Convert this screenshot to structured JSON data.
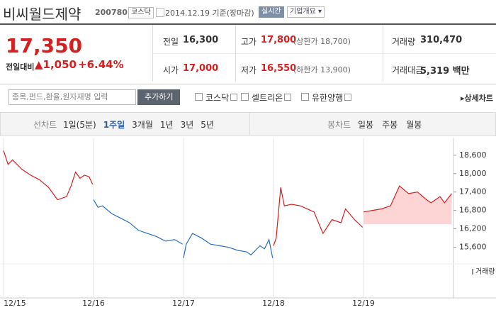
{
  "header": {
    "name": "비씨월드제약",
    "code": "200780",
    "market": "코스닥",
    "date": "2014.12.19 기준(장마감)",
    "realtime": "실시간",
    "company_info": "기업개요"
  },
  "quote": {
    "price": "17,350",
    "change_label": "전일대비",
    "change": "1,050",
    "change_pct": "+6.44%"
  },
  "stats": [
    {
      "label": "전일",
      "value": "16,300"
    },
    {
      "label": "고가",
      "value": "17,800",
      "note": "(상한가 18,700)"
    },
    {
      "label": "거래량",
      "value": "310,470"
    },
    {
      "label": "시가",
      "value": "17,000"
    },
    {
      "label": "저가",
      "value": "16,550",
      "note": "(하한가 13,900)"
    },
    {
      "label": "거래대금",
      "value": "5,319 백만"
    }
  ],
  "search": {
    "placeholder": "종목,펀드,환율,원자재명 입력",
    "button": "추가하기",
    "compare": [
      "코스닥",
      "셀트리온",
      "유한양행"
    ],
    "detail": "상세차트"
  },
  "tabs": {
    "line_label": "선차트",
    "periods": [
      "1일(5분)",
      "1주일",
      "3개월",
      "1년",
      "3년",
      "5년"
    ],
    "candle_label": "봉차트",
    "candles": [
      "일봉",
      "주봉",
      "월봉"
    ]
  },
  "chart_data": {
    "type": "line",
    "xlim": [
      0,
      5
    ],
    "xticks": [
      {
        "value": 0,
        "label": "12/15"
      },
      {
        "value": 1,
        "label": "12/16"
      },
      {
        "value": 2,
        "label": "12/17"
      },
      {
        "value": 3,
        "label": "12/18"
      },
      {
        "value": 4,
        "label": "12/19"
      }
    ],
    "ylim": [
      15150,
      18850
    ],
    "yticks": [
      {
        "value": 15600,
        "label": "15,600"
      },
      {
        "value": 16200,
        "label": "16,200"
      },
      {
        "value": 16800,
        "label": "16,800"
      },
      {
        "value": 17400,
        "label": "17,400"
      },
      {
        "value": 18000,
        "label": "18,000"
      },
      {
        "value": 18600,
        "label": "18,600"
      }
    ],
    "volume_label": "거래량",
    "series": [
      {
        "color": "#d42020",
        "x": [
          0,
          0.05,
          0.1,
          0.2,
          0.3,
          0.4,
          0.5,
          0.6,
          0.7,
          0.75,
          0.8,
          0.85,
          0.9,
          0.95,
          0.99
        ],
        "values": [
          18750,
          18300,
          18450,
          18150,
          17950,
          17800,
          17550,
          17150,
          17250,
          17600,
          18050,
          17850,
          17950,
          17900,
          17650
        ]
      },
      {
        "color": "#2a6fc2",
        "x": [
          1.0,
          1.05,
          1.1,
          1.2,
          1.3,
          1.4,
          1.5,
          1.6,
          1.7,
          1.8,
          1.9,
          1.99
        ],
        "values": [
          17150,
          16900,
          16950,
          16700,
          16550,
          16400,
          16150,
          16050,
          15950,
          15800,
          15850,
          15700
        ]
      },
      {
        "color": "#2a6fc2",
        "x": [
          2.0,
          2.03,
          2.1,
          2.2,
          2.3,
          2.4,
          2.5,
          2.6,
          2.7,
          2.75,
          2.85,
          2.9,
          2.95,
          2.99
        ],
        "values": [
          15250,
          15700,
          16050,
          15900,
          15700,
          15650,
          15600,
          15500,
          15450,
          15350,
          15650,
          15550,
          15850,
          15250
        ]
      },
      {
        "color": "#d42020",
        "x": [
          3.0,
          3.03,
          3.08,
          3.12,
          3.2,
          3.3,
          3.45,
          3.55,
          3.65,
          3.75,
          3.8,
          3.9,
          3.99
        ],
        "values": [
          15650,
          15900,
          17550,
          16950,
          17000,
          16950,
          16750,
          16050,
          16500,
          16400,
          16850,
          16500,
          16250
        ]
      },
      {
        "color": "#d42020",
        "fill": "#fdd5d5",
        "fill_base": 16350,
        "x": [
          4.0,
          4.1,
          4.2,
          4.3,
          4.4,
          4.5,
          4.6,
          4.7,
          4.75,
          4.85,
          4.9,
          4.98
        ],
        "values": [
          16750,
          16800,
          16850,
          16950,
          17600,
          17350,
          17400,
          17150,
          17050,
          17250,
          17050,
          17350
        ]
      }
    ]
  }
}
